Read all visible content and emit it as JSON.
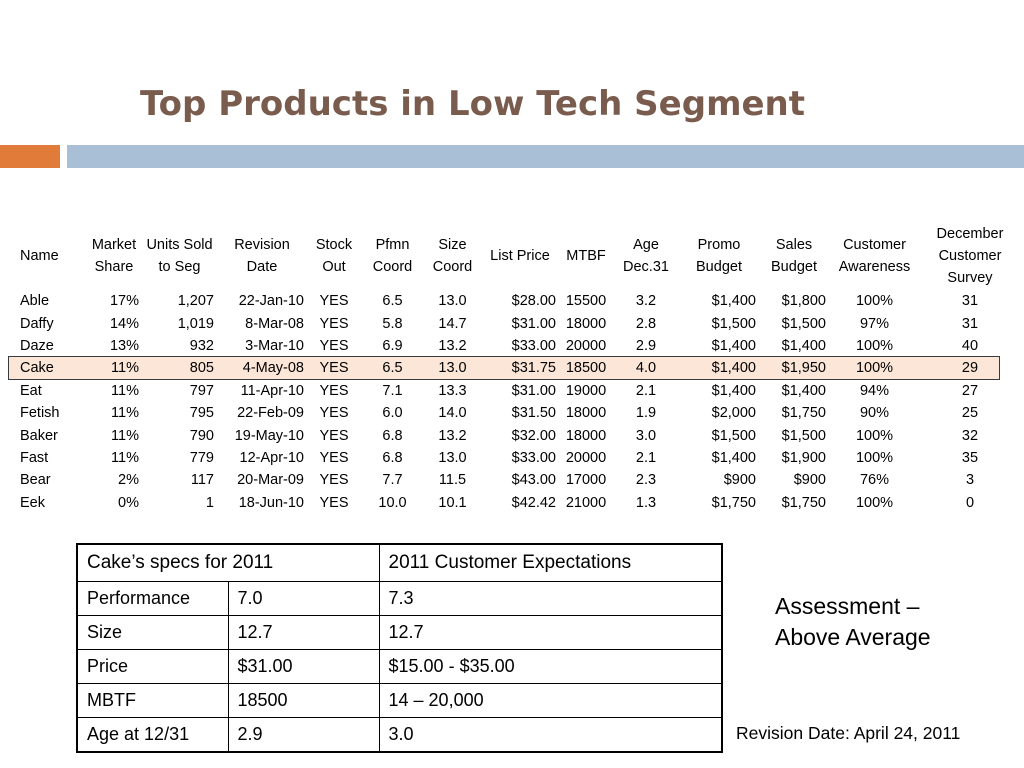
{
  "title": "Top Products in Low Tech Segment",
  "colors": {
    "title": "#7a5c4e",
    "accent_orange": "#e07b39",
    "accent_blue": "#a8bfd6",
    "highlight": "#fbe6d8"
  },
  "products_table": {
    "headers": [
      [
        "Name"
      ],
      [
        "Market",
        "Share"
      ],
      [
        "Units Sold",
        "to Seg"
      ],
      [
        "Revision",
        "Date"
      ],
      [
        "Stock",
        "Out"
      ],
      [
        "Pfmn",
        "Coord"
      ],
      [
        "Size",
        "Coord"
      ],
      [
        "List Price"
      ],
      [
        "MTBF"
      ],
      [
        "Age",
        "Dec.31"
      ],
      [
        "Promo",
        "Budget"
      ],
      [
        "Sales",
        "Budget"
      ],
      [
        "Customer",
        "Awareness"
      ],
      [
        "December",
        "Customer",
        "Survey"
      ]
    ],
    "highlighted_row": "Cake",
    "rows": [
      [
        "Able",
        "17%",
        "1,207",
        "22-Jan-10",
        "YES",
        "6.5",
        "13.0",
        "$28.00",
        "15500",
        "3.2",
        "$1,400",
        "$1,800",
        "100%",
        "31"
      ],
      [
        "Daffy",
        "14%",
        "1,019",
        "8-Mar-08",
        "YES",
        "5.8",
        "14.7",
        "$31.00",
        "18000",
        "2.8",
        "$1,500",
        "$1,500",
        "97%",
        "31"
      ],
      [
        "Daze",
        "13%",
        "932",
        "3-Mar-10",
        "YES",
        "6.9",
        "13.2",
        "$33.00",
        "20000",
        "2.9",
        "$1,400",
        "$1,400",
        "100%",
        "40"
      ],
      [
        "Cake",
        "11%",
        "805",
        "4-May-08",
        "YES",
        "6.5",
        "13.0",
        "$31.75",
        "18500",
        "4.0",
        "$1,400",
        "$1,950",
        "100%",
        "29"
      ],
      [
        "Eat",
        "11%",
        "797",
        "11-Apr-10",
        "YES",
        "7.1",
        "13.3",
        "$31.00",
        "19000",
        "2.1",
        "$1,400",
        "$1,400",
        "94%",
        "27"
      ],
      [
        "Fetish",
        "11%",
        "795",
        "22-Feb-09",
        "YES",
        "6.0",
        "14.0",
        "$31.50",
        "18000",
        "1.9",
        "$2,000",
        "$1,750",
        "90%",
        "25"
      ],
      [
        "Baker",
        "11%",
        "790",
        "19-May-10",
        "YES",
        "6.8",
        "13.2",
        "$32.00",
        "18000",
        "3.0",
        "$1,500",
        "$1,500",
        "100%",
        "32"
      ],
      [
        "Fast",
        "11%",
        "779",
        "12-Apr-10",
        "YES",
        "6.8",
        "13.0",
        "$33.00",
        "20000",
        "2.1",
        "$1,400",
        "$1,900",
        "100%",
        "35"
      ],
      [
        "Bear",
        "2%",
        "117",
        "20-Mar-09",
        "YES",
        "7.7",
        "11.5",
        "$43.00",
        "17000",
        "2.3",
        "$900",
        "$900",
        "76%",
        "3"
      ],
      [
        "Eek",
        "0%",
        "1",
        "18-Jun-10",
        "YES",
        "10.0",
        "10.1",
        "$42.42",
        "21000",
        "1.3",
        "$1,750",
        "$1,750",
        "100%",
        "0"
      ]
    ]
  },
  "specs_table": {
    "header_left": "Cake’s specs for 2011",
    "header_right": "2011 Customer Expectations",
    "rows": [
      [
        "Performance",
        "7.0",
        "7.3"
      ],
      [
        "Size",
        "12.7",
        "12.7"
      ],
      [
        "Price",
        "$31.00",
        "$15.00 - $35.00"
      ],
      [
        "MBTF",
        "18500",
        "14 – 20,000"
      ],
      [
        "Age at 12/31",
        "2.9",
        "3.0"
      ]
    ]
  },
  "assessment": [
    "Assessment –",
    "Above Average"
  ],
  "revision_date": "Revision Date: April 24, 2011"
}
